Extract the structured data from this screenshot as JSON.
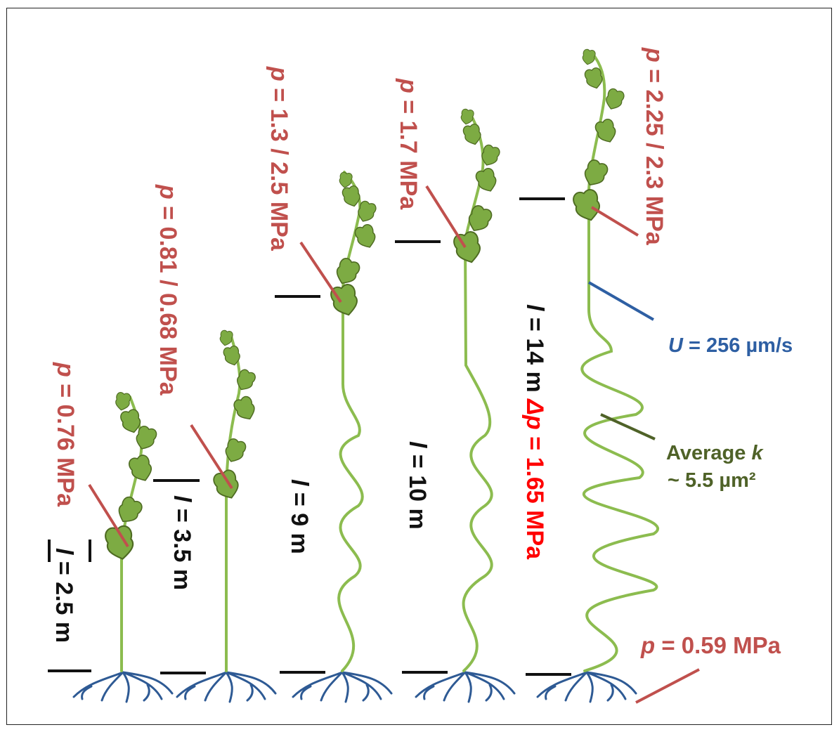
{
  "colors": {
    "stem": "#8cbc4f",
    "leaf_fill": "#7dab43",
    "leaf_stroke": "#4e6b22",
    "root": "#2e5a94",
    "pressure_red": "#c0504d",
    "delta_red": "#ff0000",
    "velocity_blue": "#2e5fa3",
    "permeability_green": "#4f6228",
    "black": "#111111"
  },
  "plants": [
    {
      "pressure_var": "p",
      "pressure_text": " = 0.76 MPa",
      "length_var": "l",
      "length_text": " = 2.5 m"
    },
    {
      "pressure_var": "p",
      "pressure_text": " = 0.81 / 0.68 MPa",
      "length_var": "l",
      "length_text": " = 3.5 m"
    },
    {
      "pressure_var": "p",
      "pressure_text": " = 1.3 / 2.5 MPa",
      "length_var": "l",
      "length_text": " = 9 m"
    },
    {
      "pressure_var": "p",
      "pressure_text": " = 1.7 MPa",
      "length_var": "l",
      "length_text": " = 10 m"
    },
    {
      "pressure_var": "p",
      "pressure_text": " = 2.25 / 2.3 MPa",
      "length_var": "l",
      "length_text": " = 14 m ",
      "delta_var": "Δp",
      "delta_text": " = 1.65 MPa"
    }
  ],
  "annotations": {
    "velocity_var": "U",
    "velocity_text": " = 256 µm/s",
    "permeability_line1_prefix": "Average ",
    "permeability_var": "k",
    "permeability_line2": "~ 5.5 µm²",
    "base_pressure_var": "p",
    "base_pressure_text": " = 0.59 MPa"
  }
}
